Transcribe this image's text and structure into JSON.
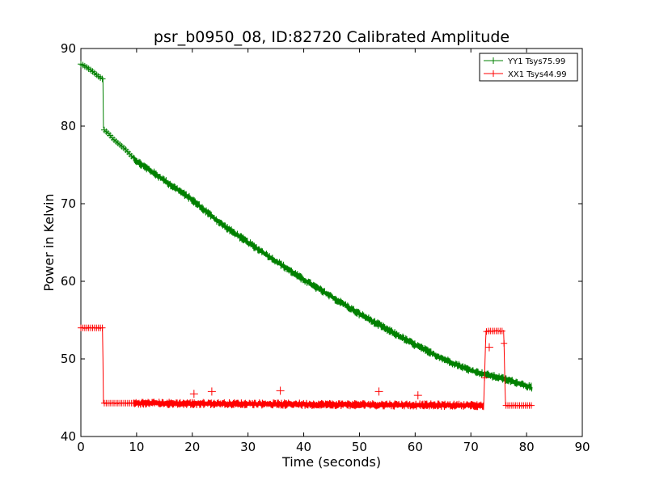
{
  "chart_data": {
    "type": "line",
    "title": "psr_b0950_08, ID:82720 Calibrated Amplitude",
    "xlabel": "Time (seconds)",
    "ylabel": "Power in Kelvin",
    "xlim": [
      0,
      90
    ],
    "ylim": [
      40,
      90
    ],
    "xticks": [
      0,
      10,
      20,
      30,
      40,
      50,
      60,
      70,
      80,
      90
    ],
    "yticks": [
      40,
      50,
      60,
      70,
      80,
      90
    ],
    "grid": false,
    "legend_position": "top-right",
    "marker": "plus",
    "series": [
      {
        "name": "YY1 Tsys75.99",
        "color": "#008000",
        "x": [
          0,
          1,
          2,
          3,
          4,
          4.05,
          4.2,
          5,
          6,
          7,
          8,
          9,
          10,
          12,
          15,
          20,
          25,
          30,
          35,
          40,
          45,
          50,
          55,
          60,
          65,
          70,
          72.5,
          75,
          78,
          81
        ],
        "y": [
          88,
          87.6,
          87.1,
          86.5,
          86,
          79.8,
          79.5,
          79,
          78.2,
          77.6,
          77,
          76.2,
          75.5,
          74.5,
          73,
          70.5,
          67.5,
          65,
          62.6,
          60.2,
          58,
          55.8,
          53.8,
          51.8,
          50,
          48.5,
          48,
          47.6,
          47,
          46.3
        ],
        "noise_band": 0.6,
        "noise_start": 9.5
      },
      {
        "name": "XX1 Tsys44.99",
        "color": "#ff0000",
        "x": [
          0,
          3.9,
          4.05,
          9.5,
          72.3,
          72.7,
          73,
          75.9,
          76.2,
          81
        ],
        "y": [
          54,
          54,
          44.3,
          44.3,
          44,
          53.5,
          53.6,
          53.6,
          44,
          44
        ],
        "noise_band": 0.6,
        "noise_start": 9.5,
        "noise_end": 72.3,
        "spikes": [
          {
            "x": 20.3,
            "y": 45.5
          },
          {
            "x": 23.5,
            "y": 45.8
          },
          {
            "x": 35.8,
            "y": 45.9
          },
          {
            "x": 53.5,
            "y": 45.8
          },
          {
            "x": 60.5,
            "y": 45.3
          },
          {
            "x": 73.3,
            "y": 51.5
          }
        ]
      }
    ]
  }
}
